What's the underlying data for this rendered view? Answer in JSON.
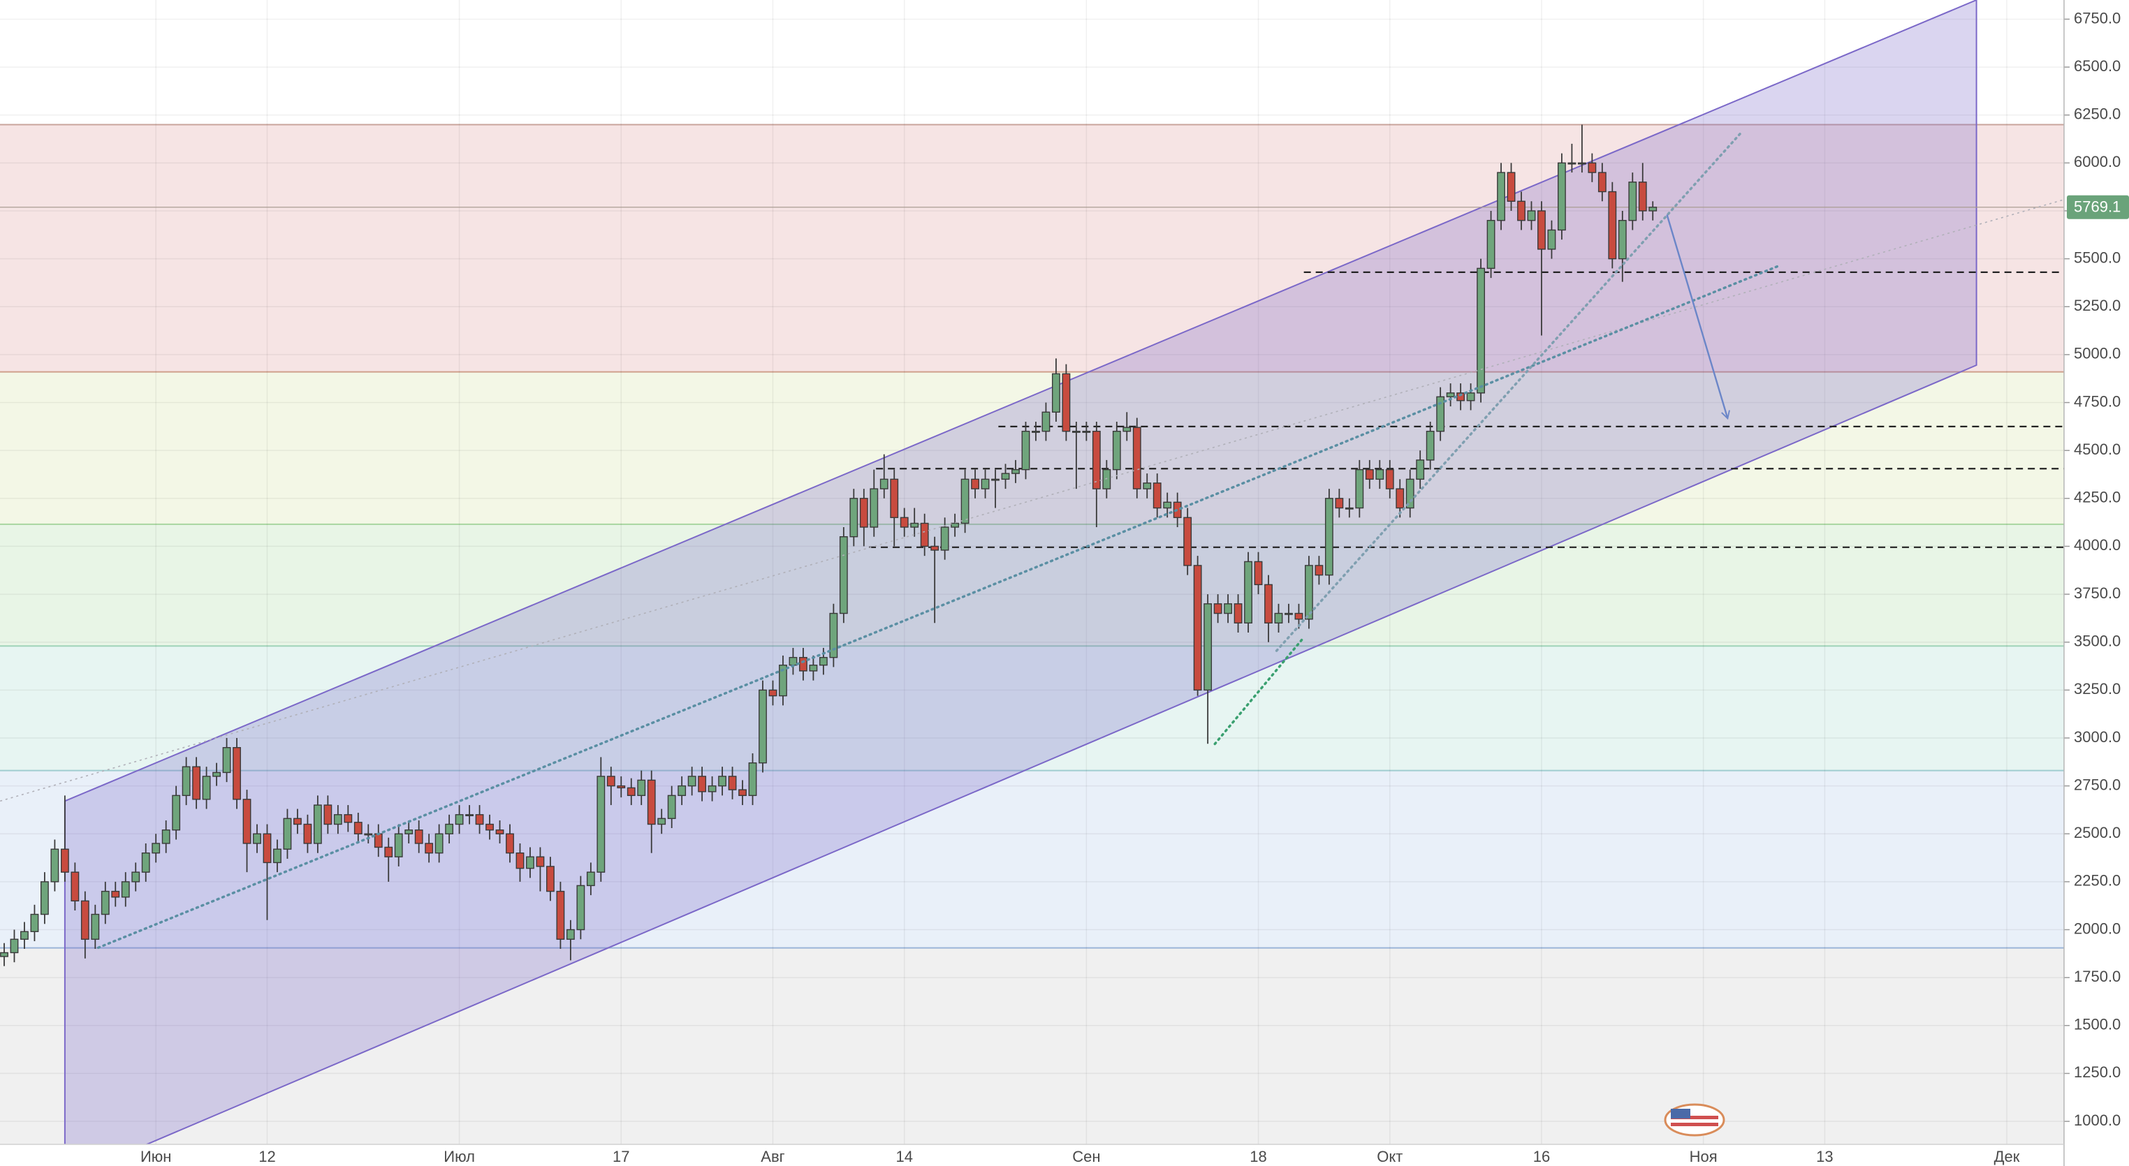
{
  "chart_data": {
    "type": "candlestick",
    "ylim": [
      880,
      6850
    ],
    "yticks": [
      {
        "value": 1000,
        "label": "1000.0"
      },
      {
        "value": 1250,
        "label": "1250.0"
      },
      {
        "value": 1500,
        "label": "1500.0"
      },
      {
        "value": 1750,
        "label": "1750.0"
      },
      {
        "value": 2000,
        "label": "2000.0"
      },
      {
        "value": 2250,
        "label": "2250.0"
      },
      {
        "value": 2500,
        "label": "2500.0"
      },
      {
        "value": 2750,
        "label": "2750.0"
      },
      {
        "value": 3000,
        "label": "3000.0"
      },
      {
        "value": 3250,
        "label": "3250.0"
      },
      {
        "value": 3500,
        "label": "3500.0"
      },
      {
        "value": 3750,
        "label": "3750.0"
      },
      {
        "value": 4000,
        "label": "4000.0"
      },
      {
        "value": 4250,
        "label": "4250.0"
      },
      {
        "value": 4500,
        "label": "4500.0"
      },
      {
        "value": 4750,
        "label": "4750.0"
      },
      {
        "value": 5000,
        "label": "5000.0"
      },
      {
        "value": 5250,
        "label": "5250.0"
      },
      {
        "value": 5500,
        "label": "5500.0"
      },
      {
        "value": 5750,
        "label": "5750.0"
      },
      {
        "value": 6000,
        "label": "6000.0"
      },
      {
        "value": 6250,
        "label": "6250.0"
      },
      {
        "value": 6500,
        "label": "6500.0"
      },
      {
        "value": 6750,
        "label": "6750.0"
      }
    ],
    "grid": true,
    "up_color": "#6fa57c",
    "down_color": "#c84b3f",
    "categories": [
      null,
      null,
      null,
      null,
      null,
      null,
      null,
      null,
      null,
      null,
      null,
      null,
      null,
      null,
      null,
      "Июн",
      null,
      null,
      null,
      null,
      null,
      null,
      null,
      null,
      null,
      null,
      "12",
      null,
      null,
      null,
      null,
      null,
      null,
      null,
      null,
      null,
      null,
      null,
      null,
      null,
      null,
      null,
      null,
      null,
      null,
      "Июл",
      null,
      null,
      null,
      null,
      null,
      null,
      null,
      null,
      null,
      null,
      null,
      null,
      null,
      null,
      null,
      "17",
      null,
      null,
      null,
      null,
      null,
      null,
      null,
      null,
      null,
      null,
      null,
      null,
      null,
      null,
      "Авг",
      null,
      null,
      null,
      null,
      null,
      null,
      null,
      null,
      null,
      null,
      null,
      null,
      "14",
      null,
      null,
      null,
      null,
      null,
      null,
      null,
      null,
      null,
      null,
      null,
      null,
      null,
      null,
      null,
      null,
      null,
      "Сен",
      null,
      null,
      null,
      null,
      null,
      null,
      null,
      null,
      null,
      null,
      null,
      null,
      null,
      null,
      null,
      null,
      "18",
      null,
      null,
      null,
      null,
      null,
      null,
      null,
      null,
      null,
      null,
      null,
      null,
      "Окт",
      null,
      null,
      null,
      null,
      null,
      null,
      null,
      null,
      null,
      null,
      null,
      null,
      null,
      null,
      "16",
      null,
      null,
      null,
      null,
      null,
      null,
      null,
      null,
      null,
      null,
      null,
      null,
      null,
      null,
      null,
      "Ноя",
      null,
      null,
      null,
      null,
      null,
      null,
      null,
      null,
      null,
      null,
      null,
      "13",
      null,
      null,
      null,
      null,
      null,
      null,
      null,
      null,
      null,
      null,
      null,
      null,
      null,
      null,
      null,
      null,
      null,
      "Дек",
      null,
      null,
      null,
      null,
      null
    ],
    "open": [
      1860,
      1880,
      1950,
      1990,
      2080,
      2250,
      2420,
      2300,
      2150,
      1950,
      2080,
      2200,
      2170,
      2250,
      2300,
      2400,
      2450,
      2520,
      2700,
      2850,
      2680,
      2800,
      2820,
      2950,
      2680,
      2450,
      2500,
      2350,
      2420,
      2580,
      2550,
      2450,
      2650,
      2550,
      2600,
      2560,
      2500,
      2500,
      2430,
      2380,
      2500,
      2520,
      2450,
      2400,
      2500,
      2550,
      2600,
      2600,
      2550,
      2520,
      2500,
      2400,
      2320,
      2380,
      2330,
      2200,
      1950,
      2000,
      2230,
      2300,
      2800,
      2750,
      2740,
      2700,
      2780,
      2550,
      2580,
      2700,
      2750,
      2800,
      2720,
      2750,
      2800,
      2730,
      2700,
      2870,
      3250,
      3220,
      3380,
      3420,
      3350,
      3380,
      3420,
      3650,
      4050,
      4250,
      4100,
      4300,
      4350,
      4150,
      4100,
      4120,
      4000,
      3980,
      4100,
      4120,
      4350,
      4300,
      4350,
      4350,
      4380,
      4400,
      4600,
      4600,
      4700,
      4900,
      4600,
      4600,
      4600,
      4300,
      4400,
      4600,
      4620,
      4300,
      4330,
      4200,
      4230,
      4150,
      3900,
      3250,
      3700,
      3650,
      3700,
      3600,
      3920,
      3800,
      3600,
      3650,
      3650,
      3620,
      3900,
      3850,
      4250,
      4200,
      4200,
      4400,
      4350,
      4400,
      4300,
      4200,
      4350,
      4450,
      4600,
      4780,
      4800,
      4760,
      4800,
      5450,
      5700,
      5950,
      5800,
      5700,
      5750,
      5550,
      5650,
      6000,
      6000,
      6000,
      5950,
      5850,
      5500,
      5700,
      5900,
      5750,
      null,
      null,
      null,
      null,
      null,
      null,
      null,
      null,
      null,
      null,
      null,
      null,
      null,
      null,
      null,
      null,
      null,
      null,
      null,
      null,
      null,
      null,
      null,
      null,
      null,
      null,
      null,
      null,
      null,
      null,
      null,
      null,
      null,
      null,
      null,
      null,
      null,
      null,
      null,
      null
    ],
    "high": [
      1930,
      2000,
      2040,
      2130,
      2300,
      2470,
      2700,
      2350,
      2200,
      2130,
      2250,
      2250,
      2300,
      2350,
      2450,
      2500,
      2570,
      2750,
      2900,
      2900,
      2850,
      2870,
      3000,
      3000,
      2730,
      2550,
      2550,
      2470,
      2630,
      2630,
      2600,
      2700,
      2700,
      2650,
      2650,
      2610,
      2550,
      2550,
      2480,
      2550,
      2570,
      2570,
      2500,
      2550,
      2600,
      2650,
      2650,
      2650,
      2600,
      2570,
      2550,
      2450,
      2430,
      2430,
      2380,
      2250,
      2050,
      2280,
      2350,
      2900,
      2850,
      2800,
      2790,
      2830,
      2830,
      2630,
      2750,
      2800,
      2850,
      2850,
      2800,
      2850,
      2850,
      2780,
      2920,
      3300,
      3300,
      3430,
      3470,
      3470,
      3430,
      3470,
      3700,
      4100,
      4300,
      4300,
      4400,
      4480,
      4400,
      4200,
      4200,
      4170,
      4050,
      4150,
      4170,
      4400,
      4400,
      4400,
      4400,
      4430,
      4450,
      4650,
      4650,
      4750,
      4980,
      4950,
      4650,
      4650,
      4650,
      4450,
      4650,
      4700,
      4670,
      4380,
      4380,
      4280,
      4280,
      4200,
      3950,
      3750,
      3750,
      3750,
      3750,
      3970,
      3970,
      3850,
      3700,
      3700,
      3700,
      3950,
      3950,
      4300,
      4300,
      4250,
      4450,
      4450,
      4450,
      4450,
      4350,
      4400,
      4500,
      4650,
      4830,
      4850,
      4850,
      4850,
      5500,
      5750,
      6000,
      6000,
      5850,
      5800,
      5800,
      5700,
      6050,
      6100,
      6200,
      6050,
      6000,
      5900,
      5750,
      5950,
      6000,
      5800,
      null,
      null,
      null,
      null,
      null,
      null,
      null,
      null,
      null,
      null,
      null,
      null,
      null,
      null,
      null,
      null,
      null,
      null,
      null,
      null,
      null,
      null,
      null,
      null,
      null,
      null,
      null,
      null,
      null,
      null,
      null,
      null,
      null,
      null,
      null,
      null,
      null,
      null,
      null,
      null
    ],
    "low": [
      1810,
      1830,
      1900,
      1940,
      2030,
      2200,
      2250,
      2100,
      1850,
      1900,
      2030,
      2120,
      2120,
      2200,
      2250,
      2350,
      2400,
      2470,
      2650,
      2630,
      2630,
      2750,
      2770,
      2630,
      2300,
      2400,
      2050,
      2300,
      2370,
      2500,
      2400,
      2400,
      2500,
      2500,
      2510,
      2450,
      2450,
      2380,
      2250,
      2330,
      2450,
      2400,
      2350,
      2350,
      2450,
      2500,
      2550,
      2500,
      2470,
      2450,
      2350,
      2250,
      2270,
      2200,
      2150,
      1900,
      1840,
      1950,
      2180,
      2250,
      2650,
      2690,
      2650,
      2650,
      2400,
      2500,
      2530,
      2650,
      2700,
      2670,
      2670,
      2700,
      2680,
      2650,
      2650,
      2820,
      3170,
      3170,
      3330,
      3300,
      3300,
      3330,
      3370,
      3600,
      4000,
      4000,
      4050,
      4250,
      4000,
      4050,
      4050,
      3950,
      3600,
      3930,
      4050,
      4070,
      4250,
      4250,
      4200,
      4300,
      4330,
      4350,
      4550,
      4550,
      4650,
      4550,
      4300,
      4550,
      4100,
      4250,
      4350,
      4550,
      4250,
      4250,
      4150,
      4150,
      4100,
      3850,
      3220,
      2970,
      3600,
      3600,
      3550,
      3550,
      3750,
      3500,
      3550,
      3600,
      3570,
      3570,
      3800,
      3800,
      4150,
      4150,
      4150,
      4300,
      4300,
      4250,
      4150,
      4150,
      4300,
      4400,
      4550,
      4730,
      4710,
      4710,
      4750,
      5400,
      5650,
      5750,
      5650,
      5650,
      5100,
      5500,
      5600,
      5950,
      5950,
      5900,
      5800,
      5450,
      5380,
      5650,
      5700,
      5700,
      null,
      null,
      null,
      null,
      null,
      null,
      null,
      null,
      null,
      null,
      null,
      null,
      null,
      null,
      null,
      null,
      null,
      null,
      null,
      null,
      null,
      null,
      null,
      null,
      null,
      null,
      null,
      null,
      null,
      null,
      null,
      null,
      null,
      null,
      null,
      null,
      null,
      null,
      null,
      null
    ],
    "close": [
      1880,
      1950,
      1990,
      2080,
      2250,
      2420,
      2300,
      2150,
      1950,
      2080,
      2200,
      2170,
      2250,
      2300,
      2400,
      2450,
      2520,
      2700,
      2850,
      2680,
      2800,
      2820,
      2950,
      2680,
      2450,
      2500,
      2350,
      2420,
      2580,
      2550,
      2450,
      2650,
      2550,
      2600,
      2560,
      2500,
      2500,
      2430,
      2380,
      2500,
      2520,
      2450,
      2400,
      2500,
      2550,
      2600,
      2600,
      2550,
      2520,
      2500,
      2400,
      2320,
      2380,
      2330,
      2200,
      1950,
      2000,
      2230,
      2300,
      2800,
      2750,
      2740,
      2700,
      2780,
      2550,
      2580,
      2700,
      2750,
      2800,
      2720,
      2750,
      2800,
      2730,
      2700,
      2870,
      3250,
      3220,
      3380,
      3420,
      3350,
      3380,
      3420,
      3650,
      4050,
      4250,
      4100,
      4300,
      4350,
      4150,
      4100,
      4120,
      4000,
      3980,
      4100,
      4120,
      4350,
      4300,
      4350,
      4350,
      4380,
      4400,
      4600,
      4600,
      4700,
      4900,
      4600,
      4600,
      4600,
      4300,
      4400,
      4600,
      4620,
      4300,
      4330,
      4200,
      4230,
      4150,
      3900,
      3250,
      3700,
      3650,
      3700,
      3600,
      3920,
      3800,
      3600,
      3650,
      3650,
      3620,
      3900,
      3850,
      4250,
      4200,
      4200,
      4400,
      4350,
      4400,
      4300,
      4200,
      4350,
      4450,
      4600,
      4780,
      4800,
      4760,
      4800,
      5450,
      5700,
      5950,
      5800,
      5700,
      5750,
      5550,
      5650,
      6000,
      6000,
      6000,
      5950,
      5850,
      5500,
      5700,
      5900,
      5750,
      5769.1,
      null,
      null,
      null,
      null,
      null,
      null,
      null,
      null,
      null,
      null,
      null,
      null,
      null,
      null,
      null,
      null,
      null,
      null,
      null,
      null,
      null,
      null,
      null,
      null,
      null,
      null,
      null,
      null,
      null,
      null,
      null,
      null,
      null,
      null,
      null,
      null,
      null,
      null,
      null,
      null
    ],
    "last_price": 5769.1,
    "last_price_color": "#6aa37a",
    "zones": [
      {
        "from": 6200,
        "to": 4910,
        "color": "#f6e4e4",
        "edge": "#c9a59c"
      },
      {
        "from": 4910,
        "to": 4115,
        "color": "#f3f7e6",
        "edge": "#cf9f8c"
      },
      {
        "from": 4115,
        "to": 3480,
        "color": "#e8f5e6",
        "edge": "#a9d6a0"
      },
      {
        "from": 3480,
        "to": 2830,
        "color": "#e7f5f2",
        "edge": "#9fd3b8"
      },
      {
        "from": 2830,
        "to": 1905,
        "color": "#e9f0f9",
        "edge": "#a0cdd0"
      },
      {
        "from": 1905,
        "to": 880,
        "color": "#f0f0f0",
        "edge": "#9ab4d8"
      }
    ],
    "channel": {
      "points": [
        [
          6,
          2671
        ],
        [
          195,
          6850
        ],
        [
          195,
          4945
        ],
        [
          6,
          698
        ]
      ],
      "color": "#7b68c8"
    },
    "hlines": [
      {
        "value": 5430,
        "start": 128.5
      },
      {
        "value": 4625,
        "start": 98.3
      },
      {
        "value": 4405,
        "start": 86.2
      },
      {
        "value": 3995,
        "start": 85.5
      }
    ],
    "lines": [
      {
        "points": [
          [
            -0.4,
            2671
          ],
          [
            203.6,
            5808
          ]
        ],
        "color": "#b0b0b8",
        "style": "faint"
      },
      {
        "points": [
          [
            9.3,
            1906
          ],
          [
            175.4,
            5462
          ]
        ],
        "color": "#5a8fa3",
        "style": "dotted"
      },
      {
        "points": [
          [
            119.7,
            2969
          ],
          [
            128.5,
            3525
          ]
        ],
        "color": "#3aa070",
        "style": "dotted"
      },
      {
        "points": [
          [
            125.8,
            3455
          ],
          [
            171.8,
            6162
          ]
        ],
        "color": "#7f9fb0",
        "style": "dotted"
      },
      {
        "points": [
          [
            164.4,
            5730
          ],
          [
            170.4,
            4667
          ]
        ],
        "color": "#6b86c8",
        "style": "arrow"
      }
    ]
  }
}
